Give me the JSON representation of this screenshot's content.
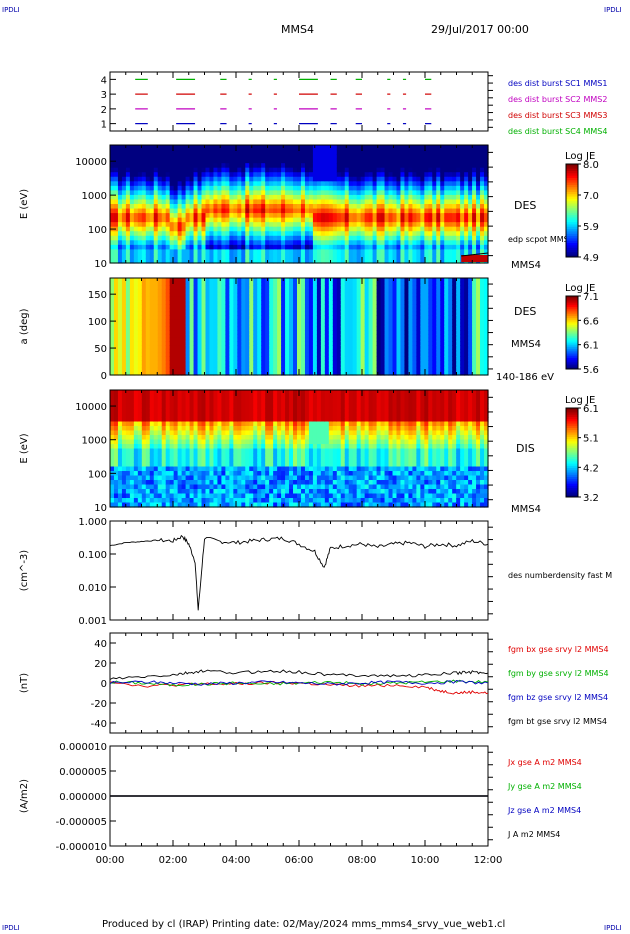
{
  "corner_labels": {
    "top_left": "IPDLI",
    "top_right": "IPDLI",
    "bottom_left": "IPDLI",
    "bottom_right": "IPDLI"
  },
  "header": {
    "spacecraft": "MMS4",
    "date": "29/Jul/2017 00:00"
  },
  "footer": "Produced by cl (IRAP)   Printing date: 02/May/2024   mms_mms4_srvy_vue_web1.cl",
  "colors": {
    "mms1": "#0000c0",
    "mms2": "#c000c0",
    "mms3": "#d00000",
    "mms4": "#00b000",
    "bx": "#e00000",
    "by": "#00b000",
    "bz": "#0000c0",
    "bt": "#000000"
  },
  "chart_data": [
    {
      "type": "line",
      "panel": "burst coverage",
      "yticks": [
        "1",
        "2",
        "3",
        "4"
      ],
      "ylim": [
        0.5,
        4.5
      ],
      "legend": [
        "des dist burst SC1 MMS1",
        "des dist burst SC2 MMS2",
        "des dist burst SC3 MMS3",
        "des dist burst SC4 MMS4"
      ],
      "series": [
        {
          "name": "des dist burst SC4 MMS4",
          "level": 4,
          "segments_h": [
            [
              0.8,
              1.2
            ],
            [
              2.1,
              2.7
            ],
            [
              3.5,
              3.7
            ],
            [
              4.4,
              4.5
            ],
            [
              5.2,
              5.3
            ],
            [
              6.0,
              6.6
            ],
            [
              7.0,
              7.2
            ],
            [
              7.8,
              8.0
            ],
            [
              8.8,
              8.9
            ],
            [
              9.3,
              9.4
            ],
            [
              10.0,
              10.2
            ]
          ]
        },
        {
          "name": "des dist burst SC3 MMS3",
          "level": 3,
          "segments_h": [
            [
              0.8,
              1.2
            ],
            [
              2.1,
              2.7
            ],
            [
              3.5,
              3.7
            ],
            [
              4.4,
              4.5
            ],
            [
              5.2,
              5.3
            ],
            [
              6.0,
              6.6
            ],
            [
              7.0,
              7.2
            ],
            [
              7.8,
              8.0
            ],
            [
              8.8,
              8.9
            ],
            [
              9.3,
              9.4
            ],
            [
              10.0,
              10.2
            ]
          ]
        },
        {
          "name": "des dist burst SC2 MMS2",
          "level": 2,
          "segments_h": [
            [
              0.8,
              1.2
            ],
            [
              2.1,
              2.7
            ],
            [
              3.5,
              3.7
            ],
            [
              4.4,
              4.5
            ],
            [
              5.2,
              5.3
            ],
            [
              6.0,
              6.6
            ],
            [
              7.0,
              7.2
            ],
            [
              7.8,
              8.0
            ],
            [
              8.8,
              8.9
            ],
            [
              9.3,
              9.4
            ],
            [
              10.0,
              10.2
            ]
          ]
        },
        {
          "name": "des dist burst SC1 MMS1",
          "level": 1,
          "segments_h": [
            [
              0.8,
              1.2
            ],
            [
              2.1,
              2.7
            ],
            [
              3.5,
              3.7
            ],
            [
              4.4,
              4.5
            ],
            [
              5.2,
              5.3
            ],
            [
              6.0,
              6.6
            ],
            [
              7.0,
              7.2
            ],
            [
              7.8,
              8.0
            ],
            [
              8.8,
              8.9
            ],
            [
              9.3,
              9.4
            ],
            [
              10.0,
              10.2
            ]
          ]
        }
      ]
    },
    {
      "type": "heatmap",
      "panel": "DES energy spectrogram",
      "ylabel": "E (eV)",
      "yticks": [
        "10",
        "100",
        "1000",
        "10000"
      ],
      "ylim": [
        10,
        30000
      ],
      "log_y": true,
      "label": "DES",
      "spacecraft": "MMS4",
      "overlay": "edp scpot MMS4",
      "colorbar": {
        "title": "Log JE",
        "ticks": [
          "8.0",
          "7.0",
          "5.9",
          "4.9"
        ],
        "range": [
          4.9,
          8.0
        ]
      }
    },
    {
      "type": "heatmap",
      "panel": "DES pitch angle",
      "ylabel": "a (deg)",
      "yticks": [
        "0",
        "50",
        "100",
        "150"
      ],
      "ylim": [
        0,
        180
      ],
      "label": "DES",
      "spacecraft": "MMS4",
      "energy_range": "140-186 eV",
      "colorbar": {
        "title": "Log JE",
        "ticks": [
          "7.1",
          "6.6",
          "6.1",
          "5.6"
        ],
        "range": [
          5.6,
          7.1
        ]
      }
    },
    {
      "type": "heatmap",
      "panel": "DIS energy spectrogram",
      "ylabel": "E (eV)",
      "yticks": [
        "10",
        "100",
        "1000",
        "10000"
      ],
      "ylim": [
        10,
        30000
      ],
      "log_y": true,
      "label": "DIS",
      "spacecraft": "MMS4",
      "colorbar": {
        "title": "Log JE",
        "ticks": [
          "6.1",
          "5.1",
          "4.2",
          "3.2"
        ],
        "range": [
          3.2,
          6.1
        ]
      }
    },
    {
      "type": "line",
      "panel": "density",
      "ylabel": "(cm^-3)",
      "yticks": [
        "0.001",
        "0.010",
        "0.100",
        "1.000"
      ],
      "ylim": [
        0.001,
        1.0
      ],
      "log_y": true,
      "series": [
        {
          "name": "des numberdensity fast M",
          "x_h": [
            0,
            0.5,
            1.0,
            1.5,
            2.0,
            2.3,
            2.5,
            2.7,
            2.8,
            3.0,
            3.5,
            4.0,
            4.5,
            5.0,
            5.5,
            6.0,
            6.5,
            6.8,
            7.0,
            7.5,
            8.0,
            8.5,
            9.0,
            9.5,
            10.0,
            10.5,
            11.0,
            11.5,
            12.0
          ],
          "y": [
            0.18,
            0.22,
            0.24,
            0.26,
            0.25,
            0.35,
            0.2,
            0.06,
            0.002,
            0.3,
            0.24,
            0.22,
            0.25,
            0.28,
            0.3,
            0.2,
            0.12,
            0.04,
            0.15,
            0.18,
            0.2,
            0.16,
            0.2,
            0.22,
            0.17,
            0.2,
            0.18,
            0.25,
            0.2
          ]
        }
      ]
    },
    {
      "type": "line",
      "panel": "magnetic field",
      "ylabel": "(nT)",
      "yticks": [
        "-40",
        "-20",
        "0",
        "20",
        "40"
      ],
      "ylim": [
        -50,
        50
      ],
      "series": [
        {
          "name": "fgm bx gse srvy l2 MMS4",
          "x_h": [
            0,
            1,
            2,
            3,
            4,
            5,
            6,
            7,
            8,
            9,
            10,
            10.5,
            11,
            11.5,
            12
          ],
          "y": [
            2,
            -3,
            -2,
            -1,
            -1,
            0,
            0,
            -2,
            -3,
            -2,
            -4,
            -8,
            -10,
            -9,
            -10
          ]
        },
        {
          "name": "fgm by gse srvy l2 MMS4",
          "x_h": [
            0,
            1,
            2,
            3,
            4,
            5,
            6,
            7,
            8,
            9,
            10,
            11,
            12
          ],
          "y": [
            1,
            0,
            -2,
            -1,
            0,
            -1,
            0,
            1,
            -1,
            0,
            1,
            2,
            1
          ]
        },
        {
          "name": "fgm bz gse srvy l2 MMS4",
          "x_h": [
            0,
            1,
            2,
            3,
            4,
            5,
            6,
            7,
            8,
            9,
            10,
            11,
            12
          ],
          "y": [
            0,
            1,
            0,
            -1,
            0,
            1,
            0,
            -1,
            0,
            1,
            0,
            1,
            0
          ]
        },
        {
          "name": "fgm bt gse srvy l2 MMS4",
          "x_h": [
            0,
            1,
            2,
            2.5,
            3,
            4,
            5,
            6,
            7,
            8,
            9,
            10,
            11,
            11.5,
            12
          ],
          "y": [
            4,
            6,
            8,
            10,
            12,
            10,
            12,
            11,
            8,
            8,
            7,
            8,
            10,
            11,
            10
          ]
        }
      ]
    },
    {
      "type": "line",
      "panel": "current density",
      "ylabel": "(A/m2)",
      "yticks": [
        "-0.000010",
        "-0.000005",
        "0.000000",
        "0.000005",
        "0.000010"
      ],
      "ylim": [
        -1e-05,
        1e-05
      ],
      "series": [
        {
          "name": "Jx gse A m2 MMS4",
          "x_h": [
            0,
            12
          ],
          "y": [
            0,
            0
          ]
        },
        {
          "name": "Jy gse A m2 MMS4",
          "x_h": [
            0,
            12
          ],
          "y": [
            0,
            0
          ]
        },
        {
          "name": "Jz gse A m2 MMS4",
          "x_h": [
            0,
            12
          ],
          "y": [
            0,
            0
          ]
        },
        {
          "name": "J A m2 MMS4",
          "x_h": [
            0,
            12
          ],
          "y": [
            0,
            0
          ]
        }
      ]
    }
  ],
  "x_axis": {
    "ticks": [
      "00:00",
      "02:00",
      "04:00",
      "06:00",
      "08:00",
      "10:00",
      "12:00"
    ],
    "range_hours": [
      0,
      12
    ]
  }
}
